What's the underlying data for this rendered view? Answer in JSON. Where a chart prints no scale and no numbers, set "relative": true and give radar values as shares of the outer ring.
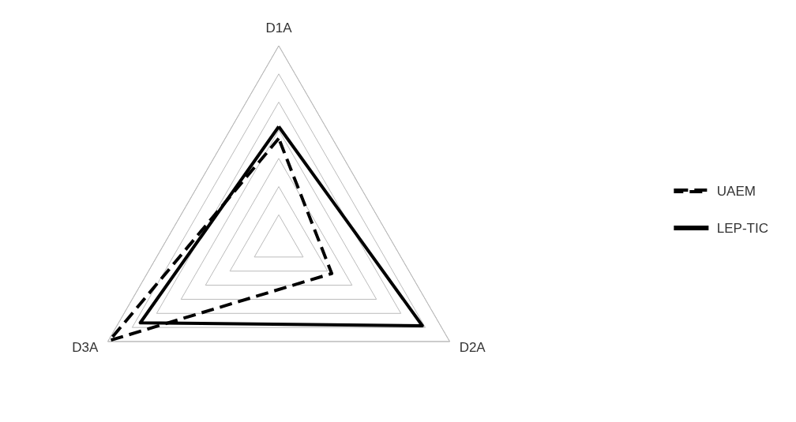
{
  "chart_data": {
    "type": "radar",
    "relative": true,
    "categories": [
      "D1A",
      "D2A",
      "D3A"
    ],
    "series": [
      {
        "name": "UAEM",
        "color": "#000000",
        "line_style": "dashed",
        "values": [
          0.53,
          0.31,
          0.99
        ]
      },
      {
        "name": "LEP-TIC",
        "color": "#000000",
        "line_style": "solid",
        "values": [
          0.59,
          0.84,
          0.81
        ]
      }
    ],
    "legend": "right",
    "marker": "none"
  }
}
